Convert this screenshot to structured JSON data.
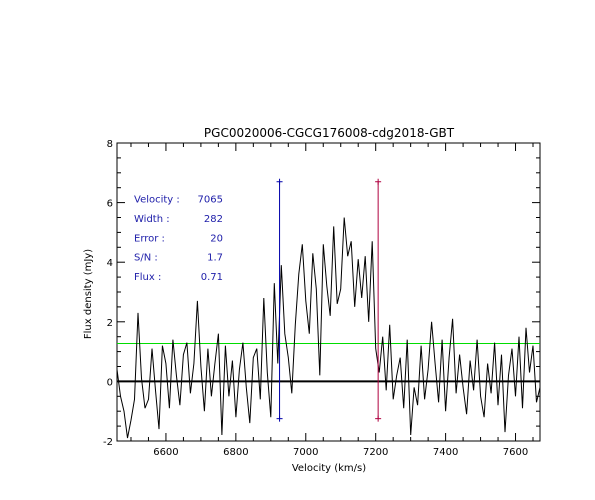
{
  "chart_data": {
    "type": "line",
    "title": "PGC0020006-CGCG176008-cdg2018-GBT",
    "xlabel": "Velocity (km/s)",
    "ylabel": "Flux density (mJy)",
    "xlim": [
      6460,
      7670
    ],
    "ylim": [
      -2,
      8
    ],
    "x_ticks": [
      6600,
      6800,
      7000,
      7200,
      7400,
      7600
    ],
    "y_ticks": [
      -2,
      0,
      2,
      4,
      6,
      8
    ],
    "grid": false,
    "series": [
      {
        "color": "#000000",
        "x": [
          6460,
          6470,
          6480,
          6490,
          6500,
          6510,
          6520,
          6530,
          6540,
          6550,
          6560,
          6570,
          6580,
          6590,
          6600,
          6610,
          6620,
          6630,
          6640,
          6650,
          6660,
          6670,
          6680,
          6690,
          6700,
          6710,
          6720,
          6730,
          6740,
          6750,
          6760,
          6770,
          6780,
          6790,
          6800,
          6810,
          6820,
          6830,
          6840,
          6850,
          6860,
          6870,
          6880,
          6890,
          6900,
          6910,
          6920,
          6930,
          6940,
          6950,
          6960,
          6970,
          6980,
          6990,
          7000,
          7010,
          7020,
          7030,
          7040,
          7050,
          7060,
          7070,
          7080,
          7090,
          7100,
          7110,
          7120,
          7130,
          7140,
          7150,
          7160,
          7170,
          7180,
          7190,
          7200,
          7210,
          7220,
          7230,
          7240,
          7250,
          7260,
          7270,
          7280,
          7290,
          7300,
          7310,
          7320,
          7330,
          7340,
          7350,
          7360,
          7370,
          7380,
          7390,
          7400,
          7410,
          7420,
          7430,
          7440,
          7450,
          7460,
          7470,
          7480,
          7490,
          7500,
          7510,
          7520,
          7530,
          7540,
          7550,
          7560,
          7570,
          7580,
          7590,
          7600,
          7610,
          7620,
          7630,
          7640,
          7650,
          7660,
          7670
        ],
        "values": [
          0.4,
          -0.5,
          -1.0,
          -1.9,
          -1.3,
          -0.6,
          2.3,
          0.1,
          -0.9,
          -0.6,
          1.1,
          -0.3,
          -1.6,
          1.2,
          0.6,
          -0.9,
          1.4,
          0.2,
          -0.8,
          0.9,
          1.3,
          -0.4,
          0.6,
          2.7,
          0.5,
          -1.0,
          1.1,
          -0.5,
          0.6,
          1.6,
          -1.8,
          1.2,
          -0.5,
          0.7,
          -1.2,
          0.4,
          1.3,
          -0.2,
          -1.4,
          0.8,
          1.1,
          -0.6,
          2.8,
          0.3,
          -1.2,
          3.3,
          0.6,
          3.9,
          1.6,
          0.8,
          -0.4,
          1.9,
          3.6,
          4.6,
          2.7,
          1.6,
          4.3,
          3.1,
          0.2,
          4.6,
          3.2,
          2.2,
          5.2,
          2.6,
          3.1,
          5.5,
          4.2,
          4.7,
          2.5,
          4.1,
          2.8,
          4.2,
          2.0,
          4.7,
          1.1,
          0.3,
          1.5,
          -0.3,
          1.9,
          -0.6,
          0.2,
          0.8,
          -0.9,
          1.4,
          -1.8,
          -0.2,
          -0.8,
          1.2,
          -0.6,
          0.4,
          2.0,
          0.6,
          -0.7,
          1.4,
          -1.0,
          0.8,
          2.1,
          -0.4,
          0.9,
          -0.2,
          -1.1,
          0.7,
          -0.3,
          1.4,
          -0.5,
          -1.2,
          0.6,
          -0.4,
          1.3,
          -0.8,
          0.9,
          -1.7,
          0.2,
          1.1,
          -0.5,
          1.5,
          -0.9,
          1.8,
          0.3,
          1.2,
          -0.7,
          -0.2
        ]
      }
    ],
    "baseline": {
      "y": 0,
      "color": "#000000"
    },
    "rms_line": {
      "y": 1.27,
      "color": "#00dd00"
    },
    "markers": [
      {
        "x": 6925,
        "y_top": 6.7,
        "y_bottom": -1.25,
        "color": "#0000aa"
      },
      {
        "x": 7207,
        "y_top": 6.7,
        "y_bottom": -1.25,
        "color": "#b00040"
      }
    ],
    "annotations": [
      {
        "label": "Velocity :",
        "value": "7065",
        "y": 6.1
      },
      {
        "label": "Width :",
        "value": "282",
        "y": 5.45
      },
      {
        "label": "Error :",
        "value": "20",
        "y": 4.8
      },
      {
        "label": "S/N :",
        "value": "1.7",
        "y": 4.15
      },
      {
        "label": "Flux :",
        "value": "0.71",
        "y": 3.5
      }
    ],
    "annotation_color": "#2020aa"
  }
}
